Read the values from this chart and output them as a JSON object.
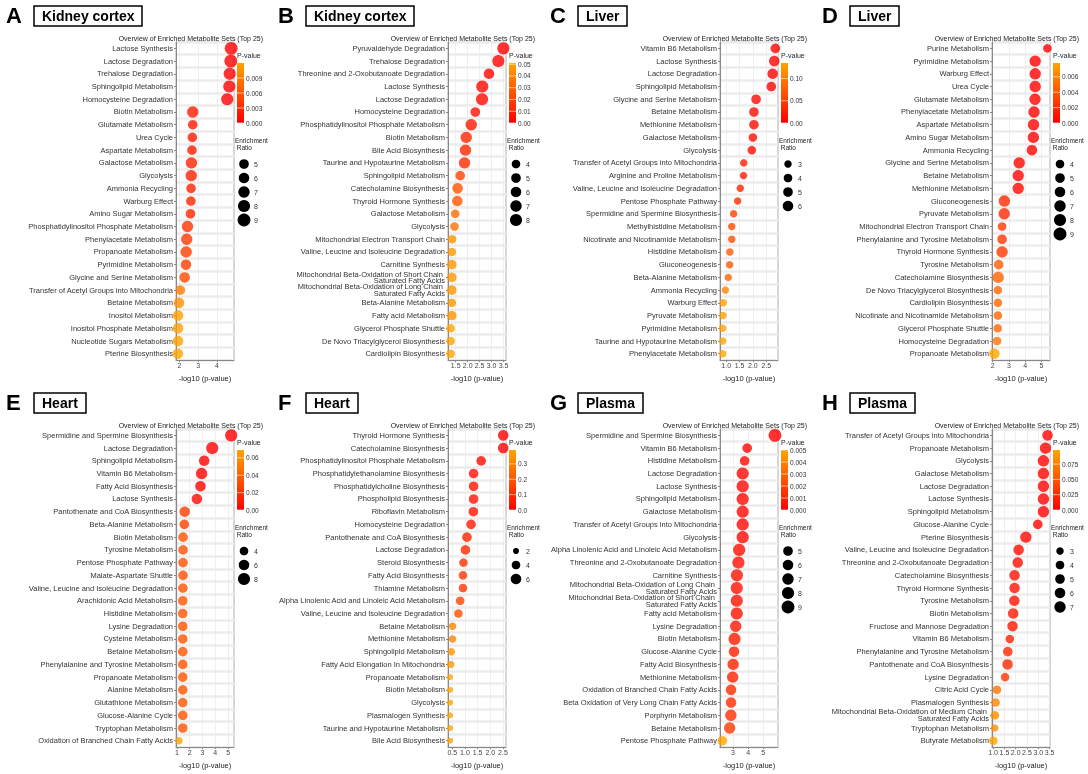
{
  "chart_data": [
    {
      "type": "bubble",
      "orientation": "horizontal",
      "title": "Kidney cortex",
      "subtitle": "Overview of Enriched Metabolite Sets (Top 25)",
      "annotations": [
        "A"
      ],
      "xlabel": "-log10 (p-value)",
      "legend_title": "Enrichment Ratio",
      "clabel": "P-value",
      "grid": true,
      "marker": "circle",
      "categories": [
        "Lactose Synthesis",
        "Lactose Degradation",
        "Trehalose Degradation",
        "Sphingolipid Metabolism",
        "Homocysteine Degradation",
        "Biotin Metabolism",
        "Glutamate Metabolism",
        "Urea Cycle",
        "Aspartate Metabolism",
        "Galactose Metabolism",
        "Glycolysis",
        "Ammonia Recycling",
        "Warburg Effect",
        "Amino Sugar Metabolism",
        "Phosphatidylinositol Phosphate Metabolism",
        "Phenylacetate Metabolism",
        "Propanoate Metabolism",
        "Pyrimidine Metabolism",
        "Glycine and Serine Metabolism",
        "Transfer of Acetyl Groups into Mitochondria",
        "Betaine Metabolism",
        "Inositol Metabolism",
        "Inositol Phosphate Metabolism",
        "Nucleotide Sugars Metabolism",
        "Pterine Biosynthesis"
      ],
      "values": [
        4.75,
        4.73,
        4.67,
        4.65,
        4.54,
        2.71,
        2.71,
        2.69,
        2.67,
        2.64,
        2.63,
        2.62,
        2.61,
        2.59,
        2.43,
        2.39,
        2.36,
        2.35,
        2.28,
        2.05,
        1.98,
        1.93,
        1.93,
        1.93,
        1.92
      ],
      "sizes": [
        9,
        9,
        8,
        8,
        8,
        7,
        5,
        5,
        5,
        7,
        7,
        5,
        5,
        5,
        7,
        7,
        7,
        6,
        6,
        5,
        6,
        6,
        6,
        6,
        6
      ],
      "cvalues": [
        1.8e-05,
        1.9e-05,
        2.1e-05,
        2.2e-05,
        2.9e-05,
        0.0019,
        0.0019,
        0.002,
        0.0021,
        0.0023,
        0.0023,
        0.0024,
        0.0025,
        0.0026,
        0.0037,
        0.0041,
        0.0044,
        0.0045,
        0.0052,
        0.0089,
        0.0105,
        0.0117,
        0.0117,
        0.0117,
        0.012
      ],
      "clim": [
        0,
        0.012
      ],
      "cticks": [
        {
          "value": 0,
          "label": "0.000"
        },
        0.003,
        0.006,
        0.009
      ],
      "size_legend": [
        5,
        6,
        7,
        8,
        9
      ],
      "xlim": [
        1.82,
        4.9
      ],
      "xticks": [
        2,
        3,
        4
      ]
    },
    {
      "type": "bubble",
      "orientation": "horizontal",
      "title": "Kidney cortex",
      "subtitle": "Overview of Enriched Metabolite Sets (Top 25)",
      "annotations": [
        "B"
      ],
      "xlabel": "-log10 (p-value)",
      "legend_title": "Enrichment Ratio",
      "clabel": "P-value",
      "grid": true,
      "marker": "circle",
      "categories": [
        "Pyruvaldehyde Degradation",
        "Trehalose Degradation",
        "Threonine and 2-Oxobutanoate Degradation",
        "Lactose Synthesis",
        "Lactose Degradation",
        "Homocysteine Degradation",
        "Phosphatidylinositol Phosphate Metabolism",
        "Biotin Metabolism",
        "Bile Acid Biosynthesis",
        "Taurine and Hypotaurine Metabolism",
        "Sphingolipid Metabolism",
        "Catecholamine Biosynthesis",
        "Thyroid Hormone Synthesis",
        "Galactose Metabolism",
        "Glycolysis",
        "Mitochondrial Electron Transport Chain",
        "Valine, Leucine and Isoleucine Degradation",
        "Carnitine Synthesis",
        "Mitochondrial Beta-Oxidation of Short Chain Saturated Fatty Acids",
        "Mitochondrial Beta-Oxidation of Long Chain Saturated Fatty Acids",
        "Beta-Alanine Metabolism",
        "Fatty acid Metabolism",
        "Glycerol Phosphate Shuttle",
        "De Novo Triacylglycerol Biosynthesis",
        "Cardiolipin Biosynthesis"
      ],
      "values": [
        3.49,
        3.28,
        2.89,
        2.61,
        2.6,
        2.32,
        2.15,
        1.94,
        1.91,
        1.87,
        1.69,
        1.58,
        1.57,
        1.48,
        1.45,
        1.35,
        1.34,
        1.34,
        1.34,
        1.34,
        1.34,
        1.34,
        1.29,
        1.29,
        1.29
      ],
      "sizes": [
        8,
        8,
        6,
        8,
        8,
        5,
        7,
        7,
        7,
        7,
        5,
        6,
        6,
        4,
        4,
        4,
        4,
        5,
        5,
        5,
        4,
        5,
        4,
        4,
        4
      ],
      "cvalues": [
        0.00032,
        0.00052,
        0.0013,
        0.0025,
        0.0025,
        0.0048,
        0.0071,
        0.011,
        0.012,
        0.013,
        0.02,
        0.026,
        0.027,
        0.033,
        0.035,
        0.045,
        0.046,
        0.046,
        0.046,
        0.046,
        0.046,
        0.046,
        0.051,
        0.051,
        0.051
      ],
      "clim": [
        0,
        0.051
      ],
      "cticks": [
        {
          "value": 0,
          "label": "0.00"
        },
        0.01,
        0.02,
        0.03,
        0.04,
        {
          "value": 0.05,
          "label": "0.05"
        }
      ],
      "size_legend": [
        4,
        5,
        6,
        7,
        8
      ],
      "xlim": [
        1.18,
        3.6
      ],
      "xticks": [
        1.5,
        {
          "value": 2,
          "label": "2.0"
        },
        2.5,
        {
          "value": 3,
          "label": "3.0"
        },
        3.5
      ]
    },
    {
      "type": "bubble",
      "orientation": "horizontal",
      "title": "Liver",
      "subtitle": "Overview of Enriched Metabolite Sets (Top 25)",
      "annotations": [
        "C"
      ],
      "xlabel": "-log10 (p-value)",
      "legend_title": "Enrichment Ratio",
      "clabel": "P-value",
      "grid": true,
      "marker": "circle",
      "categories": [
        "Vitamin B6 Metabolism",
        "Lactose Synthesis",
        "Lactose Degradation",
        "Sphingolipid Metabolism",
        "Glycine and Serine Metabolism",
        "Betaine Metabolism",
        "Methionine Metabolism",
        "Galactose Metabolism",
        "Glycolysis",
        "Transfer of Acetyl Groups into Mitochondria",
        "Arginine and Proline Metabolism",
        "Valine, Leucine and Isoleucine Degradation",
        "Pentose Phosphate Pathway",
        "Spermidine and Spermine Biosynthesis",
        "Methylhistidine Metabolism",
        "Nicotinate and Nicotinamide Metabolism",
        "Histidine Metabolism",
        "Gluconeogenesis",
        "Beta-Alanine Metabolism",
        "Ammonia Recycling",
        "Warburg Effect",
        "Pyruvate Metabolism",
        "Pyrimidine Metabolism",
        "Taurine and Hypotaurine Metabolism",
        "Phenylacetate Metabolism"
      ],
      "values": [
        2.84,
        2.8,
        2.74,
        2.69,
        2.12,
        2.04,
        2.04,
        2.0,
        1.96,
        1.66,
        1.65,
        1.53,
        1.43,
        1.28,
        1.21,
        1.21,
        1.14,
        1.13,
        1.08,
        0.97,
        0.89,
        0.88,
        0.87,
        0.87,
        0.87
      ],
      "sizes": [
        5,
        6,
        6,
        5,
        5,
        5,
        5,
        4,
        4,
        3,
        3,
        3,
        3,
        3,
        3,
        3,
        3,
        3,
        3,
        3,
        3,
        3,
        3,
        3,
        3
      ],
      "cvalues": [
        0.0014,
        0.0016,
        0.0018,
        0.002,
        0.0076,
        0.0091,
        0.0091,
        0.01,
        0.011,
        0.022,
        0.022,
        0.03,
        0.037,
        0.052,
        0.062,
        0.062,
        0.072,
        0.074,
        0.083,
        0.107,
        0.129,
        0.132,
        0.135,
        0.135,
        0.135
      ],
      "clim": [
        0,
        0.135
      ],
      "cticks": [
        {
          "value": 0,
          "label": "0.00"
        },
        0.05,
        {
          "value": 0.1,
          "label": "0.10"
        }
      ],
      "size_legend": [
        3,
        4,
        5,
        6
      ],
      "xlim": [
        0.77,
        2.94
      ],
      "xticks": [
        {
          "value": 1,
          "label": "1.0"
        },
        1.5,
        {
          "value": 2,
          "label": "2.0"
        },
        2.5
      ]
    },
    {
      "type": "bubble",
      "orientation": "horizontal",
      "title": "Liver",
      "subtitle": "Overview of Enriched Metabolite Sets (Top 25)",
      "annotations": [
        "D"
      ],
      "xlabel": "-log10 (p-value)",
      "legend_title": "Enrichment Ratio",
      "clabel": "P-value",
      "grid": true,
      "marker": "circle",
      "categories": [
        "Purine Metabolism",
        "Pyrimidine Metabolism",
        "Warburg Effect",
        "Urea Cycle",
        "Glutamate Metabolism",
        "Phenylacetate Metabolism",
        "Aspartate Metabolism",
        "Amino Sugar Metabolism",
        "Ammonia Recycling",
        "Glycine and Serine Metabolism",
        "Betaine Metabolism",
        "Methionine Metabolism",
        "Gluconeogenesis",
        "Pyruvate Metabolism",
        "Mitochondrial Electron Transport Chain",
        "Phenylalanine and Tyrosine Metabolism",
        "Thyroid Hormone Synthesis",
        "Tyrosine Metabolism",
        "Catecholamine Biosynthesis",
        "De Novo Triacylglycerol Biosynthesis",
        "Cardiolipin Biosynthesis",
        "Nicotinate and Nicotinamide Metabolism",
        "Glycerol Phosphate Shuttle",
        "Homocysteine Degradation",
        "Propanoate Metabolism"
      ],
      "values": [
        5.36,
        4.61,
        4.61,
        4.61,
        4.6,
        4.54,
        4.51,
        4.5,
        4.41,
        3.63,
        3.57,
        3.57,
        2.72,
        2.71,
        2.58,
        2.58,
        2.58,
        2.37,
        2.34,
        2.32,
        2.32,
        2.32,
        2.31,
        2.27,
        2.11
      ],
      "sizes": [
        4,
        7,
        7,
        7,
        7,
        7,
        7,
        7,
        6,
        7,
        7,
        7,
        7,
        7,
        4,
        5,
        7,
        5,
        7,
        4,
        4,
        4,
        4,
        4,
        6
      ],
      "cvalues": [
        4.4e-06,
        2.45e-05,
        2.45e-05,
        2.45e-05,
        2.5e-05,
        2.9e-05,
        3.1e-05,
        3.2e-05,
        3.9e-05,
        0.00023,
        0.00027,
        0.00027,
        0.0019,
        0.0019,
        0.0026,
        0.0026,
        0.0026,
        0.0043,
        0.0046,
        0.0048,
        0.0048,
        0.0048,
        0.0049,
        0.0054,
        0.0078
      ],
      "clim": [
        0,
        0.0078
      ],
      "cticks": [
        {
          "value": 0,
          "label": "0.000"
        },
        0.002,
        0.004,
        0.006
      ],
      "size_legend": [
        4,
        5,
        6,
        7,
        8,
        9
      ],
      "xlim": [
        1.96,
        5.52
      ],
      "xticks": [
        2,
        3,
        4,
        5
      ]
    },
    {
      "type": "bubble",
      "orientation": "horizontal",
      "title": "Heart",
      "subtitle": "Overview of Enriched Metabolite Sets (Top 25)",
      "annotations": [
        "E"
      ],
      "xlabel": "-log10 (p-value)",
      "legend_title": "Enrichment Ratio",
      "clabel": "P-value",
      "grid": true,
      "marker": "circle",
      "categories": [
        "Spermidine and Spermine Biosynthesis",
        "Lactose Degradation",
        "Sphingolipid Metabolism",
        "Vitamin B6 Metabolism",
        "Fatty Acid Biosynthesis",
        "Lactose Synthesis",
        "Pantothenate and CoA Biosynthesis",
        "Beta-Alanine Metabolism",
        "Biotin Metabolism",
        "Tyrosine Metabolism",
        "Pentose Phosphate Pathway",
        "Malate-Aspartate Shuttle",
        "Valine, Leucine and Isoleucine Degradation",
        "Arachidonic Acid Metabolism",
        "Histidine Metabolism",
        "Lysine Degradation",
        "Cysteine Metabolism",
        "Betaine Metabolism",
        "Phenylalanine and Tyrosine Metabolism",
        "Propanoate Metabolism",
        "Alanine Metabolism",
        "Glutathione Metabolism",
        "Glucose-Alanine Cycle",
        "Tryptophan Metabolism",
        "Oxidation of Branched Chain Fatty Acids"
      ],
      "values": [
        5.24,
        3.76,
        3.13,
        2.93,
        2.84,
        2.56,
        1.61,
        1.58,
        1.48,
        1.48,
        1.48,
        1.48,
        1.47,
        1.46,
        1.46,
        1.46,
        1.46,
        1.46,
        1.46,
        1.46,
        1.46,
        1.46,
        1.46,
        1.46,
        1.16
      ],
      "sizes": [
        8,
        8,
        6,
        7,
        6,
        6,
        6,
        5,
        5,
        5,
        5,
        5,
        5,
        5,
        5,
        5,
        5,
        5,
        5,
        5,
        5,
        5,
        5,
        5,
        3
      ],
      "cvalues": [
        5.8e-06,
        0.00017,
        0.00074,
        0.0012,
        0.0014,
        0.0028,
        0.025,
        0.026,
        0.033,
        0.033,
        0.033,
        0.033,
        0.034,
        0.035,
        0.035,
        0.035,
        0.035,
        0.035,
        0.035,
        0.035,
        0.035,
        0.035,
        0.035,
        0.035,
        0.069
      ],
      "clim": [
        0,
        0.069
      ],
      "cticks": [
        {
          "value": 0,
          "label": "0.00"
        },
        0.02,
        0.04,
        0.06
      ],
      "size_legend": [
        4,
        6,
        8
      ],
      "xlim": [
        0.93,
        5.46
      ],
      "xticks": [
        1,
        2,
        3,
        4,
        5
      ]
    },
    {
      "type": "bubble",
      "orientation": "horizontal",
      "title": "Heart",
      "subtitle": "Overview of Enriched Metabolite Sets (Top 25)",
      "annotations": [
        "F"
      ],
      "xlabel": "-log10 (p-value)",
      "legend_title": "Enrichment Ratio",
      "clabel": "P-value",
      "grid": true,
      "marker": "circle",
      "categories": [
        "Thyroid Hormone Synthesis",
        "Catecholamine Biosynthesis",
        "Phosphatidylinositol Phosphate Metabolism",
        "Phosphatidylethanolamine Biosynthesis",
        "Phosphatidylcholine Biosynthesis",
        "Phospholipid Biosynthesis",
        "Riboflavin Metabolism",
        "Homocysteine Degradation",
        "Pantothenate and CoA Biosynthesis",
        "Lactose Degradation",
        "Steroid Biosynthesis",
        "Fatty Acid Biosynthesis",
        "Thiamine Metabolism",
        "Alpha Linolenic Acid and Linoleic Acid Metabolism",
        "Valine, Leucine and Isoleucine Degradation",
        "Betaine Metabolism",
        "Methionine Metabolism",
        "Sphingolipid Metabolism",
        "Fatty Acid Elongation In Mitochondria",
        "Propanoate Metabolism",
        "Biotin Metabolism",
        "Glycolysis",
        "Plasmalogen Synthesis",
        "Taurine and Hypotaurine Metabolism",
        "Bile Acid Biosynthesis"
      ],
      "values": [
        2.51,
        2.51,
        1.64,
        1.34,
        1.34,
        1.34,
        1.33,
        1.24,
        1.08,
        1.02,
        0.94,
        0.92,
        0.92,
        0.81,
        0.74,
        0.51,
        0.51,
        0.46,
        0.44,
        0.41,
        0.41,
        0.41,
        0.41,
        0.41,
        0.41
      ],
      "sizes": [
        6,
        6,
        5,
        5,
        5,
        5,
        5,
        5,
        5,
        5,
        4,
        4,
        4,
        4,
        4,
        3,
        3,
        3,
        3,
        2,
        2,
        2,
        2,
        2,
        2
      ],
      "cvalues": [
        0.0031,
        0.0031,
        0.023,
        0.046,
        0.046,
        0.046,
        0.047,
        0.058,
        0.083,
        0.095,
        0.115,
        0.12,
        0.12,
        0.155,
        0.182,
        0.309,
        0.309,
        0.347,
        0.363,
        0.389,
        0.389,
        0.389,
        0.389,
        0.389,
        0.389
      ],
      "clim": [
        0,
        0.39
      ],
      "cticks": [
        {
          "value": 0,
          "label": "0.0"
        },
        0.1,
        0.2,
        0.3
      ],
      "size_legend": [
        2,
        4,
        6
      ],
      "xlim": [
        0.33,
        2.62
      ],
      "xticks": [
        0.5,
        {
          "value": 1,
          "label": "1.0"
        },
        1.5,
        {
          "value": 2,
          "label": "2.0"
        },
        2.5
      ]
    },
    {
      "type": "bubble",
      "orientation": "horizontal",
      "title": "Plasma",
      "subtitle": "Overview of Enriched Metabolite Sets (Top 25)",
      "annotations": [
        "G"
      ],
      "xlabel": "-log10 (p-value)",
      "legend_title": "Enrichment Ratio",
      "clabel": "P-value",
      "grid": true,
      "marker": "circle",
      "categories": [
        "Spermidine and Spermine Biosynthesis",
        "Vitamin B6 Metabolism",
        "Histidine Metabolism",
        "Lactose Degradation",
        "Lactose Synthesis",
        "Sphingolipid Metabolism",
        "Galactose Metabolism",
        "Transfer of Acetyl Groups into Mitochondria",
        "Glycolysis",
        "Alpha Linolenic Acid and Linoleic Acid Metabolism",
        "Threonine and 2-Oxobutanoate Degradation",
        "Carnitine Synthesis",
        "Mitochondrial Beta-Oxidation of Long Chain Saturated Fatty Acids",
        "Mitochondrial Beta-Oxidation of Short Chain Saturated Fatty Acids",
        "Fatty acid Metabolism",
        "Lysine Degradation",
        "Biotin Metabolism",
        "Glucose-Alanine Cycle",
        "Fatty Acid Biosynthesis",
        "Methionine Metabolism",
        "Oxidation of Branched Chain Fatty Acids",
        "Beta Oxidation of Very Long Chain Fatty Acids",
        "Porphyrin Metabolism",
        "Betaine Metabolism",
        "Pentose Phosphate Pathway"
      ],
      "values": [
        5.78,
        3.94,
        3.77,
        3.64,
        3.64,
        3.64,
        3.64,
        3.64,
        3.64,
        3.41,
        3.36,
        3.26,
        3.25,
        3.25,
        3.25,
        3.18,
        3.1,
        3.07,
        3.01,
        2.98,
        2.87,
        2.87,
        2.86,
        2.78,
        2.3
      ],
      "sizes": [
        9,
        5,
        5,
        8,
        8,
        8,
        8,
        8,
        8,
        8,
        8,
        8,
        8,
        8,
        8,
        7,
        8,
        6,
        7,
        7,
        6,
        6,
        7,
        7,
        5
      ],
      "cvalues": [
        1.7e-06,
        0.00011,
        0.00017,
        0.00023,
        0.00023,
        0.00023,
        0.00023,
        0.00023,
        0.00023,
        0.00039,
        0.00044,
        0.00055,
        0.00056,
        0.00056,
        0.00056,
        0.00066,
        0.00079,
        0.00085,
        0.00098,
        0.001,
        0.0013,
        0.0013,
        0.0014,
        0.0017,
        0.005
      ],
      "clim": [
        0,
        0.005
      ],
      "cticks": [
        {
          "value": 0,
          "label": "0.000"
        },
        0.001,
        0.002,
        0.003,
        0.004,
        0.005
      ],
      "size_legend": [
        5,
        6,
        7,
        8,
        9
      ],
      "xlim": [
        2.14,
        5.98
      ],
      "xticks": [
        3,
        4,
        5
      ]
    },
    {
      "type": "bubble",
      "orientation": "horizontal",
      "title": "Plasma",
      "subtitle": "Overview of Enriched Metabolite Sets (Top 25)",
      "annotations": [
        "H"
      ],
      "xlabel": "-log10 (p-value)",
      "legend_title": "Enrichment Ratio",
      "clabel": "P-value",
      "grid": true,
      "marker": "circle",
      "categories": [
        "Transfer of Acetyl Groups into Mitochondria",
        "Propanoate Metabolism",
        "Glycolysis",
        "Galactose Metabolism",
        "Lactose Degradation",
        "Lactose Synthesis",
        "Sphingolipid Metabolism",
        "Glucose-Alanine Cycle",
        "Pterine Biosynthesis",
        "Valine, Leucine and Isoleucine Degradation",
        "Threonine and 2-Oxobutanoate Degradation",
        "Catecholamine Biosynthesis",
        "Thyroid Hormone Synthesis",
        "Tyrosine Metabolism",
        "Biotin Metabolism",
        "Fructose and Mannose Degradation",
        "Vitamin B6 Metabolism",
        "Phenylalanine and Tyrosine Metabolism",
        "Pantothenate and CoA Biosynthesis",
        "Lysine Degradation",
        "Citric Acid Cycle",
        "Plasmalogen Synthesis",
        "Mitochondrial Beta-Oxidation of Medium Chain Saturated Fatty Acids",
        "Tryptophan Metabolism",
        "Butyrate Metabolism"
      ],
      "values": [
        3.41,
        3.32,
        3.23,
        3.23,
        3.23,
        3.23,
        3.23,
        2.98,
        2.45,
        2.13,
        2.09,
        1.95,
        1.95,
        1.94,
        1.89,
        1.86,
        1.74,
        1.65,
        1.64,
        1.53,
        1.17,
        1.11,
        1.08,
        1.07,
        1.01
      ],
      "sizes": [
        6,
        7,
        7,
        7,
        7,
        7,
        7,
        5,
        7,
        6,
        6,
        6,
        6,
        6,
        6,
        6,
        4,
        5,
        6,
        4,
        4,
        4,
        4,
        3,
        4
      ],
      "cvalues": [
        0.00039,
        0.00048,
        0.00059,
        0.00059,
        0.00059,
        0.00059,
        0.00059,
        0.001,
        0.0035,
        0.0074,
        0.0081,
        0.011,
        0.011,
        0.011,
        0.013,
        0.014,
        0.018,
        0.022,
        0.023,
        0.03,
        0.068,
        0.078,
        0.083,
        0.085,
        0.098
      ],
      "clim": [
        0,
        0.098
      ],
      "cticks": [
        {
          "value": 0,
          "label": "0.000"
        },
        0.025,
        {
          "value": 0.05,
          "label": "0.050"
        },
        0.075
      ],
      "size_legend": [
        3,
        4,
        5,
        6,
        7
      ],
      "xlim": [
        0.95,
        3.52
      ],
      "xticks": [
        {
          "value": 1,
          "label": "1.0"
        },
        1.5,
        {
          "value": 2,
          "label": "2.0"
        },
        2.5,
        {
          "value": 3,
          "label": "3.0"
        },
        3.5
      ]
    }
  ]
}
